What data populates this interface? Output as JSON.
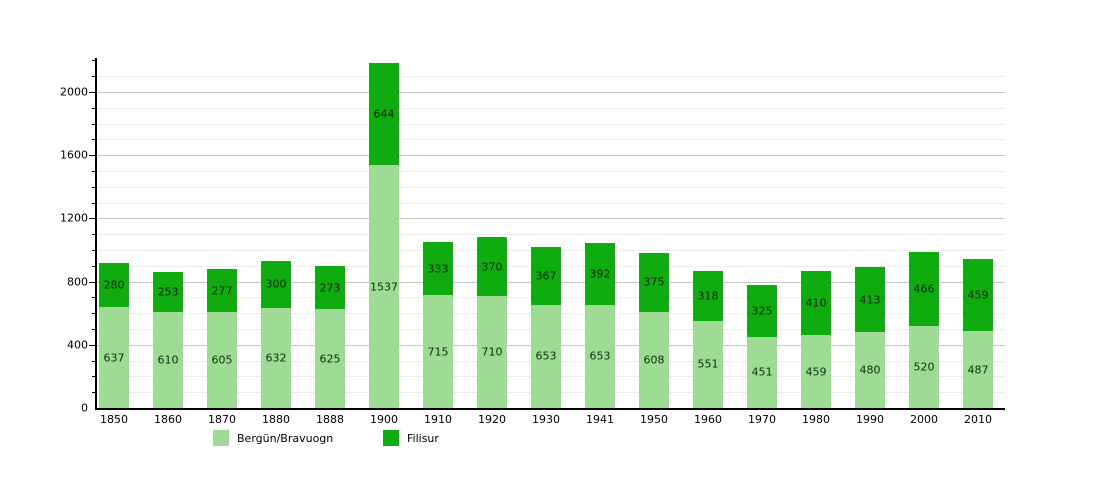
{
  "colors": {
    "series_light": "#9edc96",
    "series_dark": "#0fab0f",
    "grid_minor": "#ececec",
    "grid_major": "#c8c8c8",
    "axis": "#000000",
    "value_label": "#0e2e0e"
  },
  "chart_data": {
    "type": "bar",
    "stacked": true,
    "title": "",
    "xlabel": "",
    "ylabel": "",
    "categories": [
      "1850",
      "1860",
      "1870",
      "1880",
      "1888",
      "1900",
      "1910",
      "1920",
      "1930",
      "1941",
      "1950",
      "1960",
      "1970",
      "1980",
      "1990",
      "2000",
      "2010"
    ],
    "series": [
      {
        "name": "Bergün/Bravuogn",
        "color_key": "series_light",
        "values": [
          637,
          610,
          605,
          632,
          625,
          1537,
          715,
          710,
          653,
          653,
          608,
          551,
          451,
          459,
          480,
          520,
          487
        ]
      },
      {
        "name": "Filisur",
        "color_key": "series_dark",
        "values": [
          280,
          253,
          277,
          300,
          273,
          644,
          333,
          370,
          367,
          392,
          375,
          318,
          325,
          410,
          413,
          466,
          459
        ]
      }
    ],
    "ylim": [
      0,
      2230
    ],
    "yticks_major": [
      0,
      400,
      800,
      1200,
      1600,
      2000
    ],
    "ytick_minor_step": 100,
    "grid": true,
    "legend_position": "bottom",
    "value_labels_shown": true
  }
}
